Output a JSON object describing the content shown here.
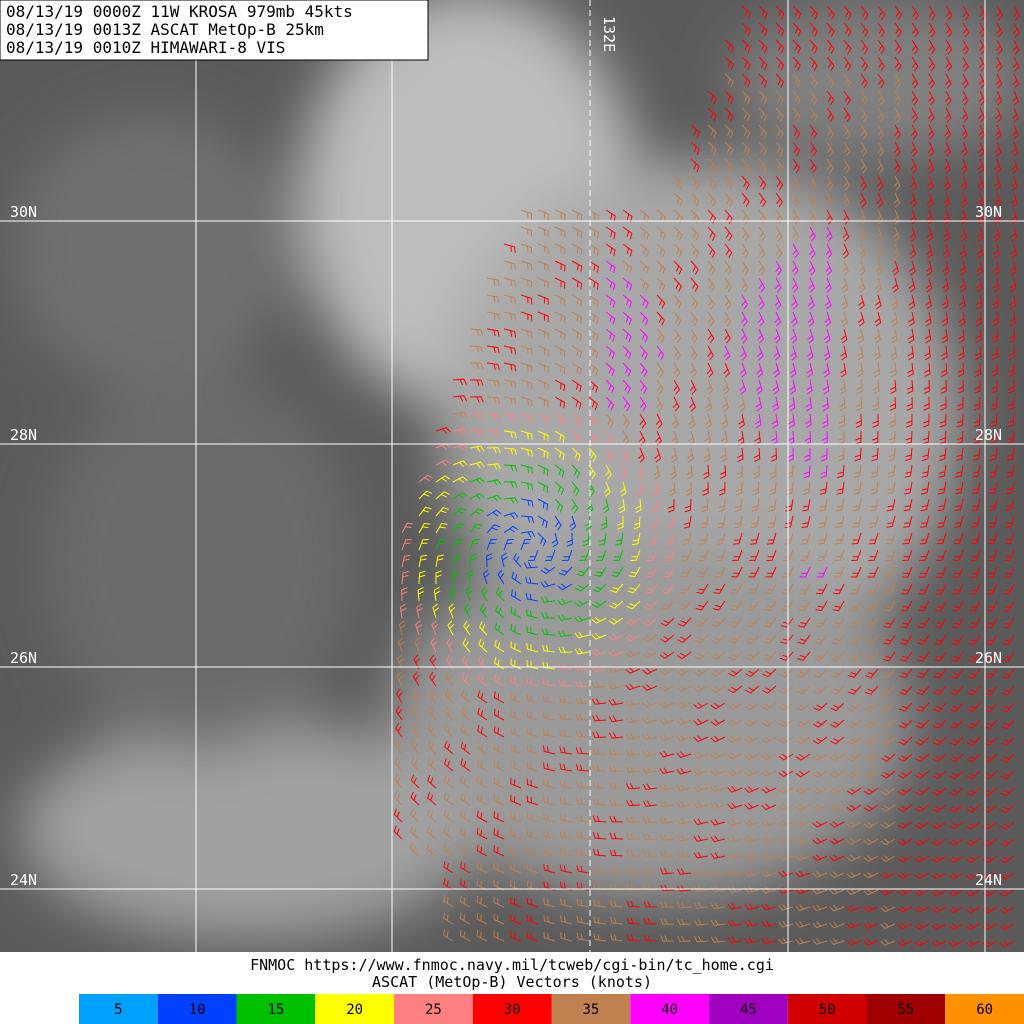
{
  "header": {
    "lines": [
      "08/13/19 0000Z  11W KROSA 979mb 45kts",
      "08/13/19 0013Z  ASCAT MetOp-B 25km",
      "08/13/19 0010Z  HIMAWARI-8 VIS"
    ]
  },
  "grid": {
    "lat_labels": [
      "30N",
      "28N",
      "26N",
      "24N"
    ],
    "lon_label": "132E"
  },
  "footer": {
    "lines": [
      "FNMOC https://www.fnmoc.navy.mil/tcweb/cgi-bin/tc_home.cgi",
      "ASCAT (MetOp-B) Vectors (knots)"
    ]
  },
  "legend": [
    {
      "value": 5,
      "color": "#00a0ff"
    },
    {
      "value": 10,
      "color": "#0040ff"
    },
    {
      "value": 15,
      "color": "#00c000"
    },
    {
      "value": 20,
      "color": "#ffff00"
    },
    {
      "value": 25,
      "color": "#ff8080"
    },
    {
      "value": 30,
      "color": "#ff0000"
    },
    {
      "value": 35,
      "color": "#c08050"
    },
    {
      "value": 40,
      "color": "#ff00ff"
    },
    {
      "value": 45,
      "color": "#a000c0"
    },
    {
      "value": 50,
      "color": "#d00000"
    },
    {
      "value": 55,
      "color": "#a00000"
    },
    {
      "value": 60,
      "color": "#ff9000"
    }
  ]
}
